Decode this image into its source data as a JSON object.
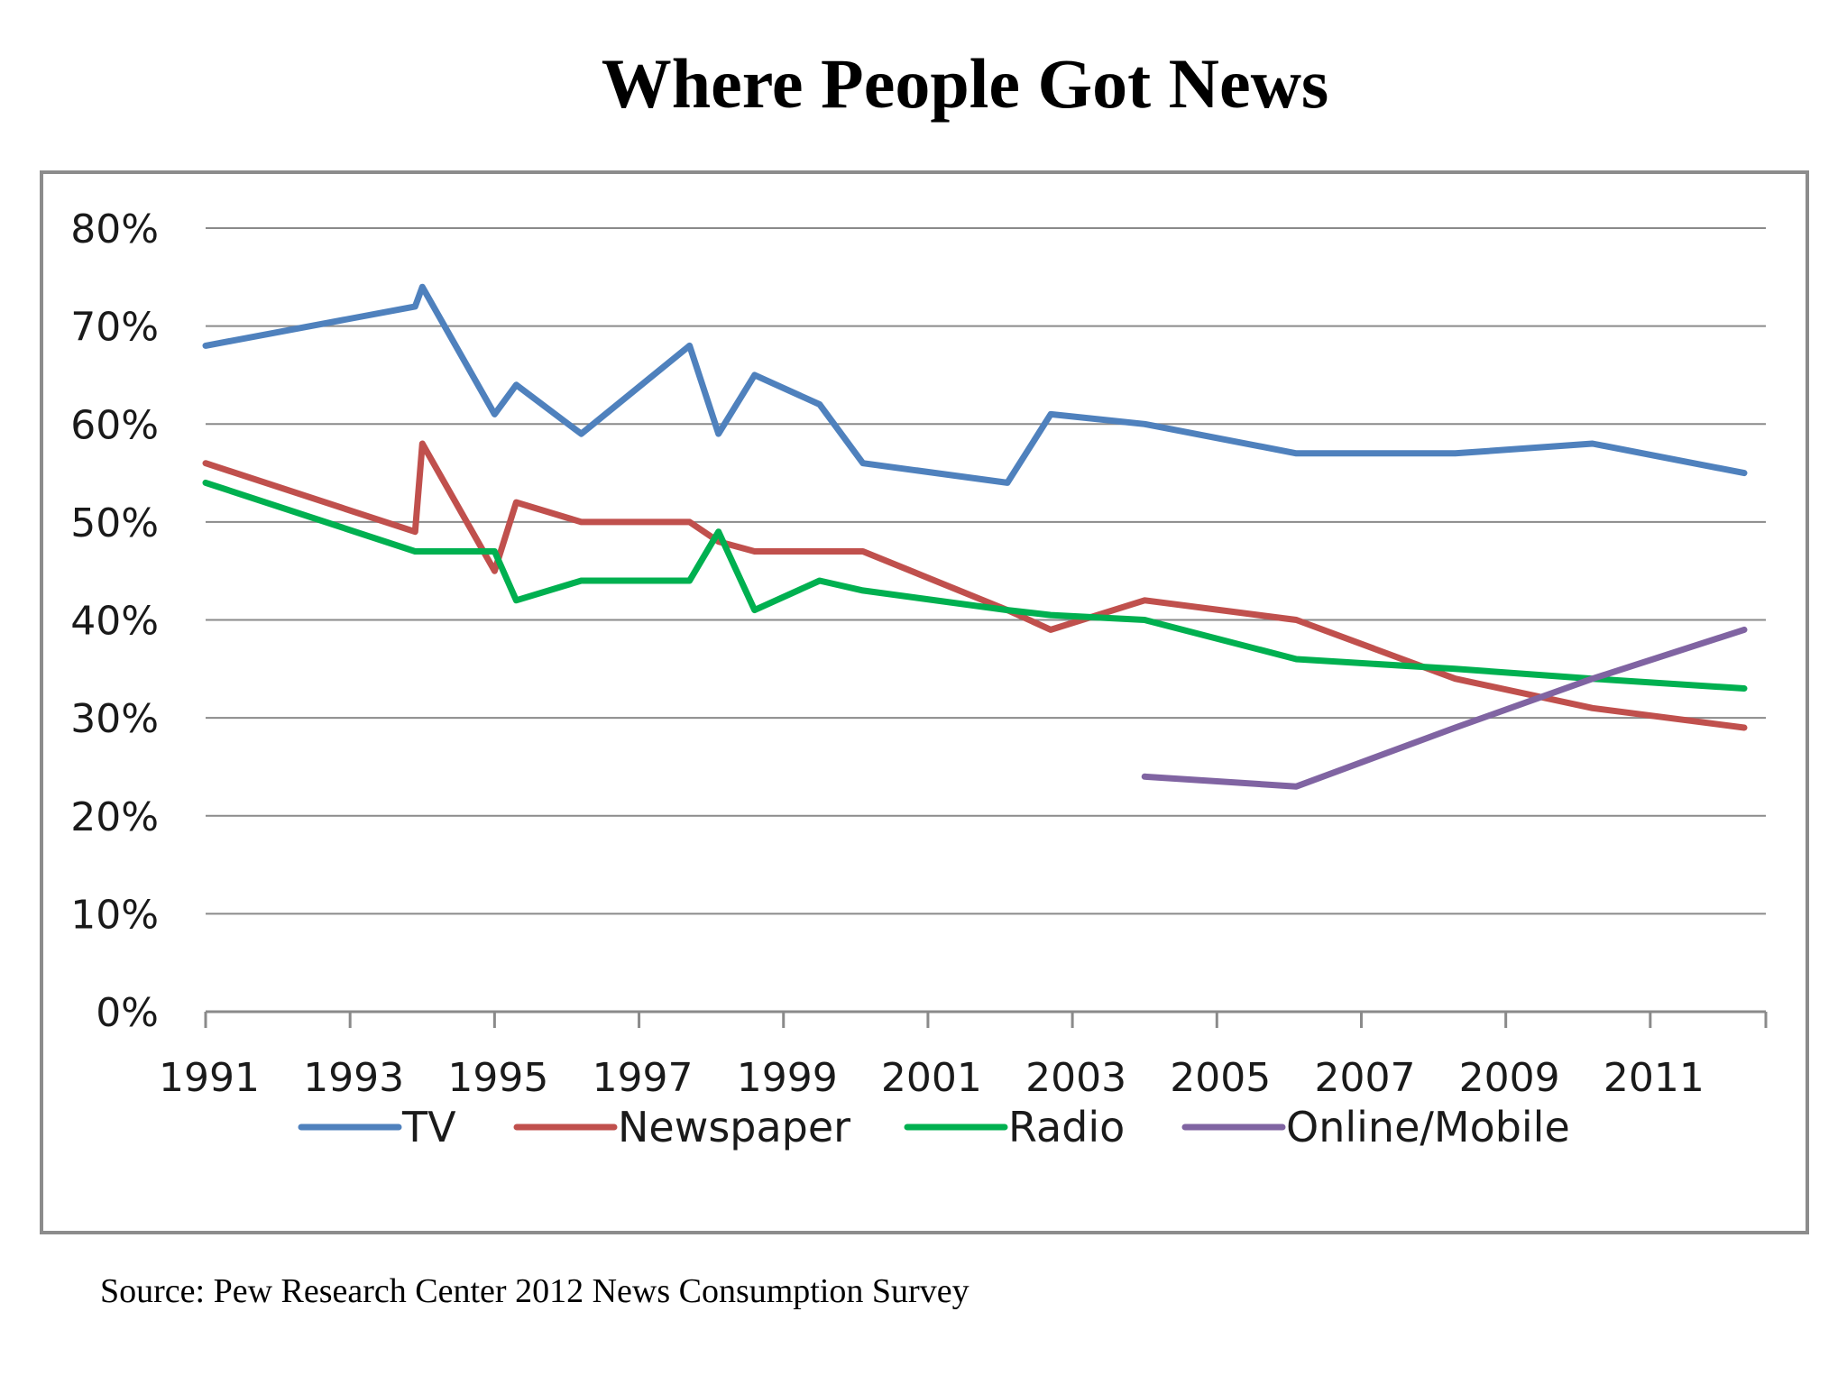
{
  "title": "Where People Got News",
  "source": "Source: Pew Research Center 2012 News Consumption Survey",
  "chart_data": {
    "type": "line",
    "title": "Where People Got News",
    "xlabel": "",
    "ylabel": "",
    "xlim": [
      1991,
      2012.6
    ],
    "ylim": [
      0,
      80
    ],
    "x_ticks": [
      1991,
      1993,
      1995,
      1997,
      1999,
      2001,
      2003,
      2005,
      2007,
      2009,
      2011
    ],
    "x_tick_labels": [
      "1991",
      "1993",
      "1995",
      "1997",
      "1999",
      "2001",
      "2003",
      "2005",
      "2007",
      "2009",
      "2011"
    ],
    "y_ticks": [
      0,
      10,
      20,
      30,
      40,
      50,
      60,
      70,
      80
    ],
    "y_tick_labels": [
      "0%",
      "10%",
      "20%",
      "30%",
      "40%",
      "50%",
      "60%",
      "70%",
      "80%"
    ],
    "grid": true,
    "legend_position": "bottom",
    "series": [
      {
        "name": "TV",
        "color": "#4f81bd",
        "points": [
          [
            1991,
            68
          ],
          [
            1993.9,
            72
          ],
          [
            1994,
            74
          ],
          [
            1995,
            61
          ],
          [
            1995.3,
            64
          ],
          [
            1996.2,
            59
          ],
          [
            1997.7,
            68
          ],
          [
            1998.1,
            59
          ],
          [
            1998.6,
            65
          ],
          [
            1999.5,
            62
          ],
          [
            2000.1,
            56
          ],
          [
            2002.1,
            54
          ],
          [
            2002.7,
            61
          ],
          [
            2004,
            60
          ],
          [
            2006.1,
            57
          ],
          [
            2008.3,
            57
          ],
          [
            2010.2,
            58
          ],
          [
            2012.3,
            55
          ]
        ]
      },
      {
        "name": "Newspaper",
        "color": "#c0504d",
        "points": [
          [
            1991,
            56
          ],
          [
            1993.9,
            49
          ],
          [
            1994,
            58
          ],
          [
            1995,
            45
          ],
          [
            1995.3,
            52
          ],
          [
            1996.2,
            50
          ],
          [
            1997.7,
            50
          ],
          [
            1998.1,
            48
          ],
          [
            1998.6,
            47
          ],
          [
            1999.5,
            47
          ],
          [
            2000.1,
            47
          ],
          [
            2002.1,
            41
          ],
          [
            2002.7,
            39
          ],
          [
            2004,
            42
          ],
          [
            2006.1,
            40
          ],
          [
            2008.3,
            34
          ],
          [
            2010.2,
            31
          ],
          [
            2012.3,
            29
          ]
        ]
      },
      {
        "name": "Radio",
        "color": "#00b050",
        "points": [
          [
            1991,
            54
          ],
          [
            1993.9,
            47
          ],
          [
            1994,
            47
          ],
          [
            1995,
            47
          ],
          [
            1995.3,
            42
          ],
          [
            1996.2,
            44
          ],
          [
            1997.7,
            44
          ],
          [
            1998.1,
            49
          ],
          [
            1998.6,
            41
          ],
          [
            1999.5,
            44
          ],
          [
            2000.1,
            43
          ],
          [
            2002.1,
            41
          ],
          [
            2002.7,
            40.5
          ],
          [
            2004,
            40
          ],
          [
            2006.1,
            36
          ],
          [
            2008.3,
            35
          ],
          [
            2010.2,
            34
          ],
          [
            2012.3,
            33
          ]
        ]
      },
      {
        "name": "Online/Mobile",
        "color": "#8064a2",
        "points": [
          [
            2004,
            24
          ],
          [
            2006.1,
            23
          ],
          [
            2008.3,
            29
          ],
          [
            2010.2,
            34
          ],
          [
            2012.3,
            39
          ]
        ]
      }
    ]
  }
}
